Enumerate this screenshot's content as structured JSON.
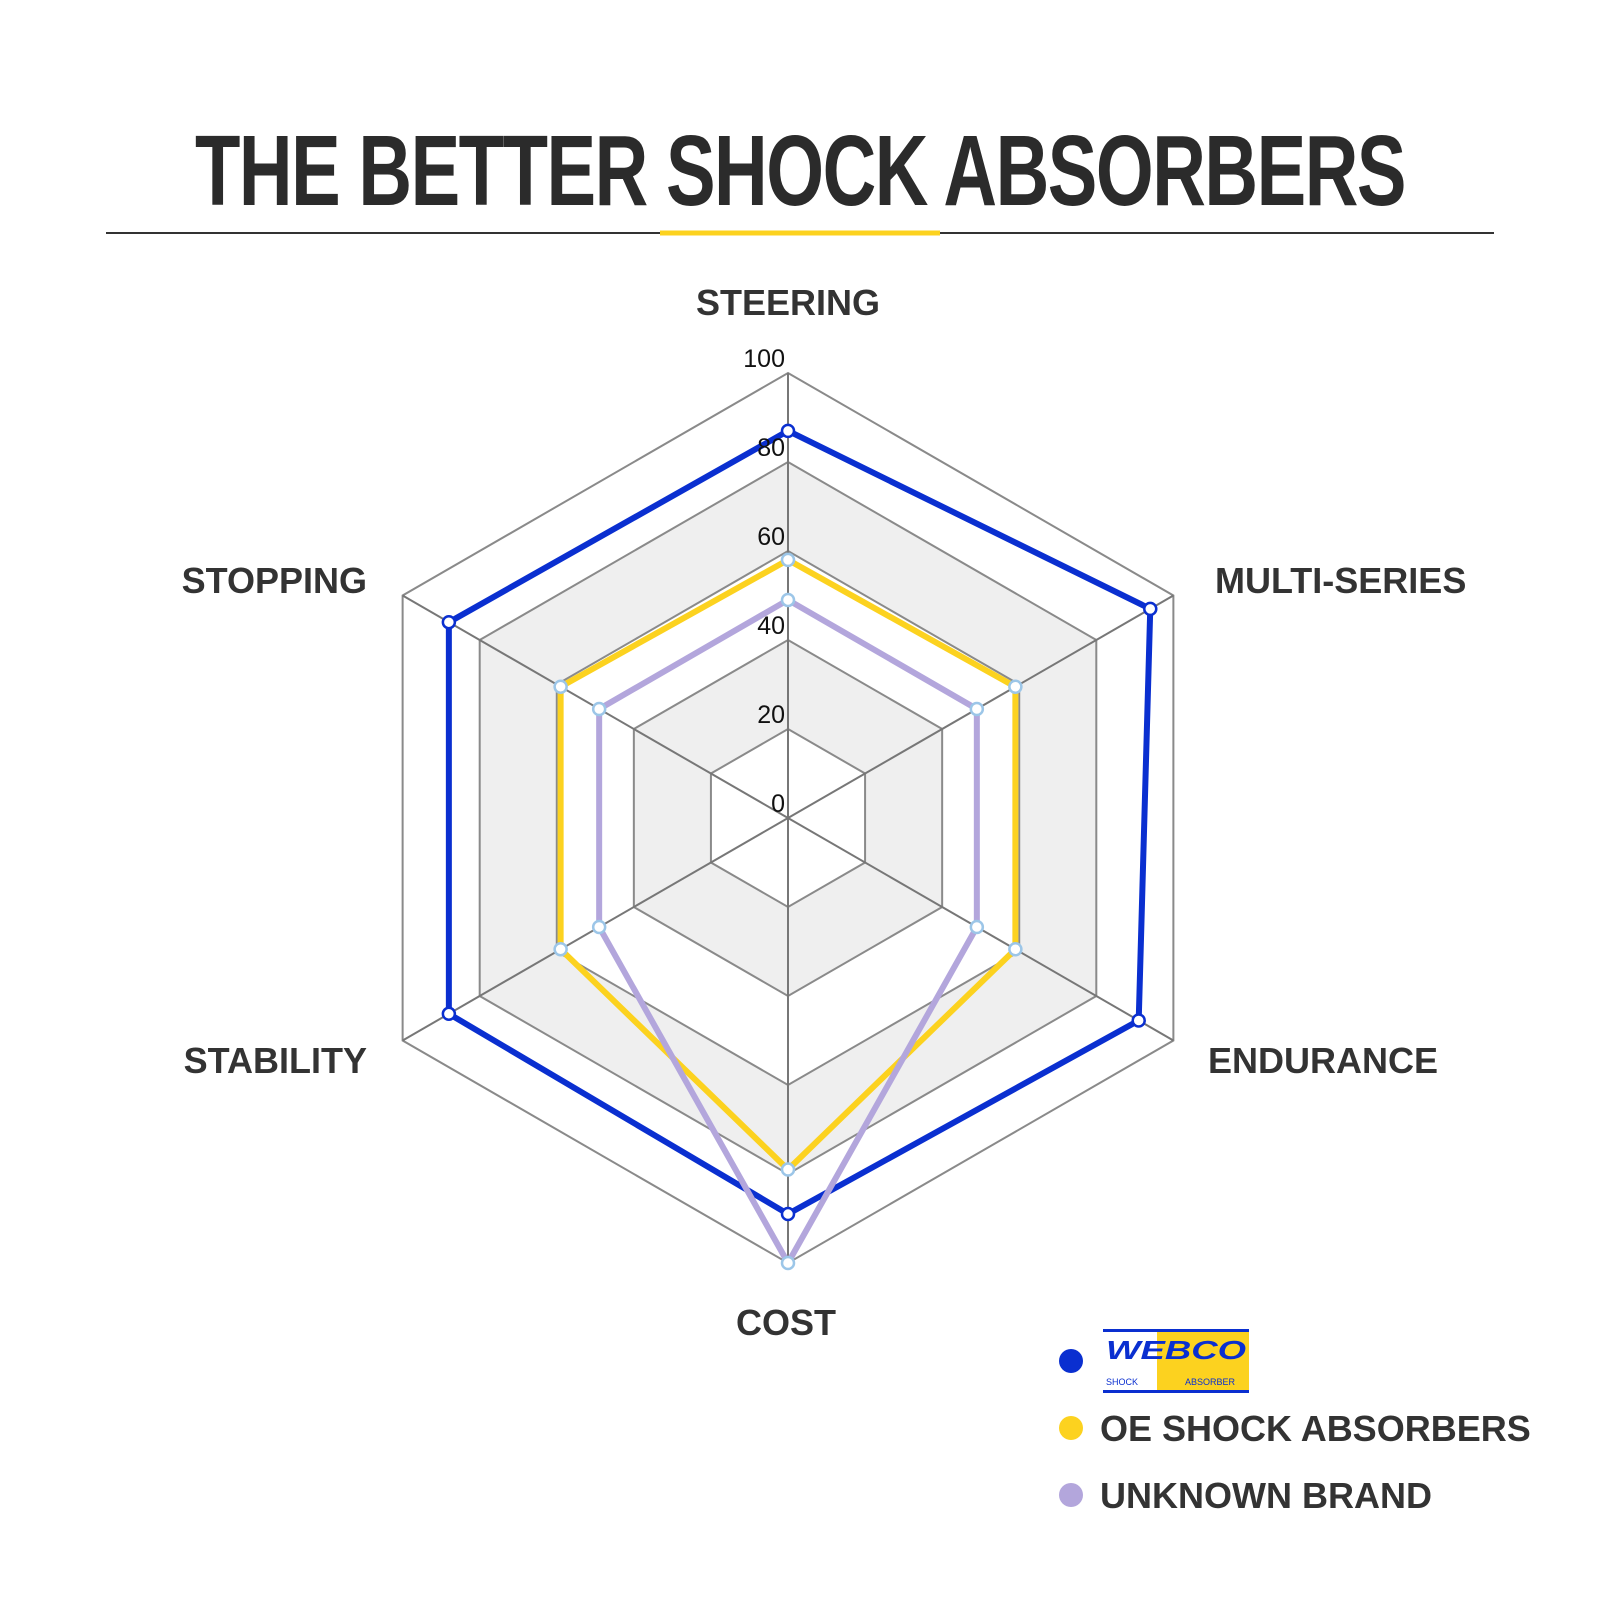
{
  "chart_data": {
    "type": "radar",
    "title": "THE BETTER SHOCK ABSORBERS",
    "axes": [
      "STEERING",
      "MULTI-SERIES",
      "ENDURANCE",
      "COST",
      "STABILITY",
      "STOPPING"
    ],
    "ticks": [
      "0",
      "20",
      "40",
      "60",
      "80",
      "100"
    ],
    "range": [
      0,
      100
    ],
    "grid": true,
    "legend_position": "bottom-right",
    "series": [
      {
        "name": "WEBCO SHOCK ABSORBER",
        "logo": true,
        "color": "#0a2fd0",
        "values": [
          87,
          94,
          91,
          89,
          88,
          88
        ]
      },
      {
        "name": "OE SHOCK ABSORBERS",
        "color": "#fcd21f",
        "values": [
          58,
          59,
          59,
          79,
          59,
          59
        ]
      },
      {
        "name": "UNKNOWN BRAND",
        "color": "#b3a6dc",
        "values": [
          49,
          49,
          49,
          100,
          49,
          49
        ]
      }
    ],
    "accent_color": "#fcd21f"
  },
  "logo": {
    "main": "WEBCO",
    "sub_left": "SHOCK",
    "sub_right": "ABSORBER"
  }
}
